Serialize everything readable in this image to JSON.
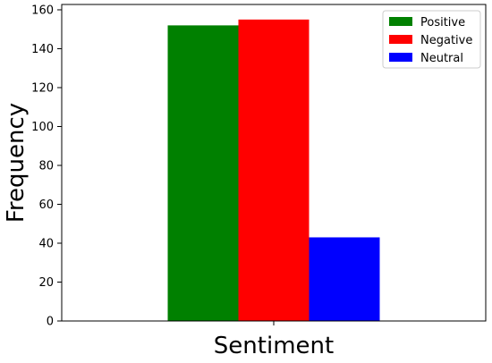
{
  "chart_data": {
    "type": "bar",
    "categories": [
      ""
    ],
    "series": [
      {
        "name": "Positive",
        "values": [
          152
        ],
        "color": "#008000"
      },
      {
        "name": "Negative",
        "values": [
          155
        ],
        "color": "#ff0000"
      },
      {
        "name": "Neutral",
        "values": [
          43
        ],
        "color": "#0000ff"
      }
    ],
    "xlabel": "Sentiment",
    "ylabel": "Frequency",
    "ylim": [
      0,
      162.75
    ],
    "yticks": [
      0,
      20,
      40,
      60,
      80,
      100,
      120,
      140,
      160
    ],
    "grid": false,
    "legend_position": "top-right"
  }
}
